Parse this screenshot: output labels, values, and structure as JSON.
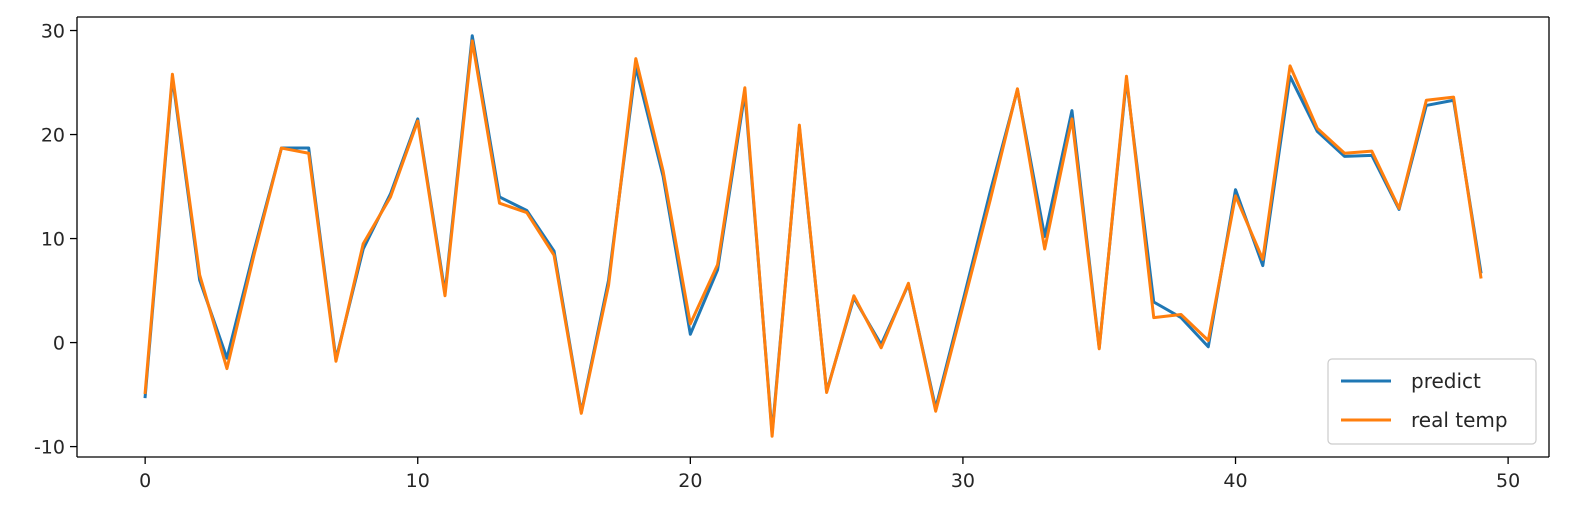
{
  "chart_data": {
    "type": "line",
    "title": "",
    "xlabel": "",
    "ylabel": "",
    "xlim": [
      -2.5,
      51.5
    ],
    "ylim": [
      -11,
      31.3
    ],
    "x_ticks": [
      0,
      10,
      20,
      30,
      40,
      50
    ],
    "y_ticks": [
      -10,
      0,
      10,
      20,
      30
    ],
    "x_tick_labels": [
      "0",
      "10",
      "20",
      "30",
      "40",
      "50"
    ],
    "y_tick_labels": [
      "-10",
      "0",
      "10",
      "20",
      "30"
    ],
    "grid": false,
    "legend_position": "lower-right",
    "x": [
      0,
      1,
      2,
      3,
      4,
      5,
      6,
      7,
      8,
      9,
      10,
      11,
      12,
      13,
      14,
      15,
      16,
      17,
      18,
      19,
      20,
      21,
      22,
      23,
      24,
      25,
      26,
      27,
      28,
      29,
      30,
      31,
      32,
      33,
      34,
      35,
      36,
      37,
      38,
      39,
      40,
      41,
      42,
      43,
      44,
      45,
      46,
      47,
      48,
      49
    ],
    "series": [
      {
        "name": "predict",
        "color": "#1f77b4",
        "values": [
          -5.2,
          25.5,
          6.0,
          -1.5,
          8.9,
          18.7,
          18.7,
          -1.6,
          9.0,
          14.3,
          21.5,
          4.8,
          29.5,
          14.0,
          12.7,
          8.8,
          -6.7,
          6.0,
          26.5,
          16.0,
          0.8,
          7.0,
          24.0,
          -8.7,
          20.7,
          -4.7,
          4.3,
          -0.2,
          5.6,
          -6.3,
          4.0,
          14.5,
          24.3,
          10.2,
          22.3,
          -0.5,
          25.3,
          3.9,
          2.4,
          -0.4,
          14.7,
          7.4,
          25.6,
          20.3,
          17.9,
          18.0,
          12.8,
          22.8,
          23.3,
          6.8
        ]
      },
      {
        "name": "real temp",
        "color": "#ff7f0e",
        "values": [
          -4.8,
          25.8,
          6.5,
          -2.5,
          8.5,
          18.7,
          18.2,
          -1.8,
          9.5,
          14.0,
          21.3,
          4.5,
          29.0,
          13.4,
          12.5,
          8.4,
          -6.8,
          5.5,
          27.3,
          16.5,
          1.8,
          7.5,
          24.5,
          -9.0,
          20.9,
          -4.8,
          4.5,
          -0.5,
          5.7,
          -6.6,
          3.5,
          13.7,
          24.4,
          9.0,
          21.5,
          -0.6,
          25.6,
          2.4,
          2.7,
          0.2,
          14.1,
          8.0,
          26.6,
          20.6,
          18.2,
          18.4,
          12.9,
          23.3,
          23.6,
          6.3
        ]
      }
    ]
  }
}
